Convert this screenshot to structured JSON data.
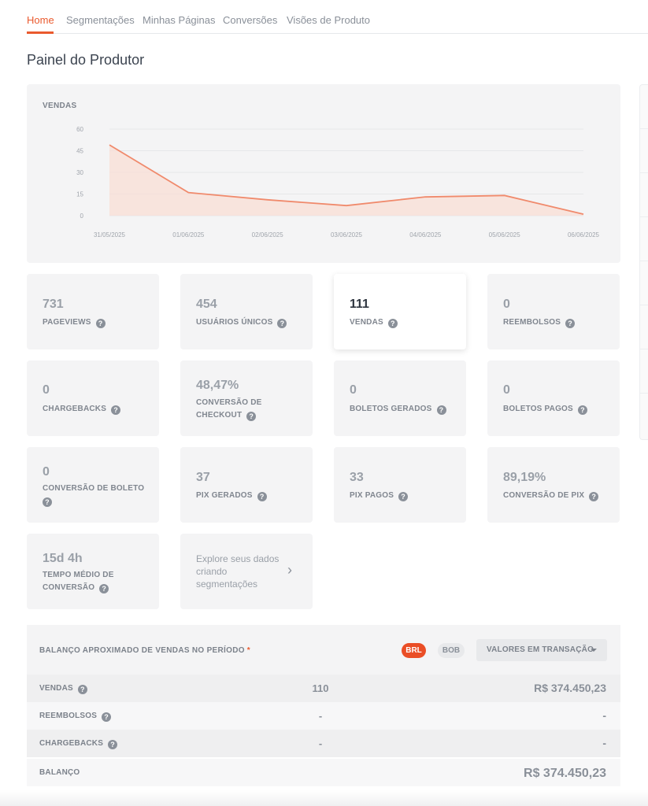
{
  "nav": {
    "tabs": [
      {
        "label": "Home",
        "active": true
      },
      {
        "label": "Segmentações"
      },
      {
        "label": "Minhas Páginas"
      },
      {
        "label": "Conversões"
      },
      {
        "label": "Visões de Produto"
      }
    ]
  },
  "page": {
    "title": "Painel do Produtor"
  },
  "chart": {
    "title": "VENDAS"
  },
  "chart_data": {
    "type": "area",
    "title": "VENDAS",
    "categories": [
      "31/05/2025",
      "01/06/2025",
      "02/06/2025",
      "03/06/2025",
      "04/06/2025",
      "05/06/2025",
      "06/06/2025"
    ],
    "series": [
      {
        "values": [
          49,
          16,
          11,
          7,
          13,
          14,
          1
        ]
      }
    ],
    "yticks": [
      "0",
      "15",
      "30",
      "45",
      "60"
    ],
    "ylim": [
      0,
      60
    ],
    "grid": true,
    "color": "#f08a6c"
  },
  "stats": {
    "pageviews": {
      "value": "731",
      "label": "PAGEVIEWS"
    },
    "usuarios": {
      "value": "454",
      "label": "USUÁRIOS ÚNICOS"
    },
    "vendas": {
      "value": "111",
      "label": "VENDAS"
    },
    "reembolsos": {
      "value": "0",
      "label": "REEMBOLSOS"
    },
    "chargebacks": {
      "value": "0",
      "label": "CHARGEBACKS"
    },
    "conv_checkout": {
      "value": "48,47%",
      "label1": "CONVERSÃO DE",
      "label2": "CHECKOUT"
    },
    "boletos_gerados": {
      "value": "0",
      "label": "BOLETOS GERADOS"
    },
    "boletos_pagos": {
      "value": "0",
      "label": "BOLETOS PAGOS"
    },
    "conv_boleto": {
      "value": "0",
      "label": "CONVERSÃO DE BOLETO"
    },
    "pix_gerados": {
      "value": "37",
      "label": "PIX GERADOS"
    },
    "pix_pagos": {
      "value": "33",
      "label": "PIX PAGOS"
    },
    "conv_pix": {
      "value": "89,19%",
      "label": "CONVERSÃO DE PIX"
    },
    "tempo": {
      "value": "15d 4h",
      "label1": "TEMPO MÉDIO DE",
      "label2": "CONVERSÃO"
    }
  },
  "explore": {
    "text": "Explore seus dados criando segmentações"
  },
  "help_glyph": "?",
  "chevron_glyph": "›",
  "balance": {
    "title": "BALANÇO APROXIMADO DE VENDAS NO PERÍODO",
    "star": "*",
    "currency_brl": "BRL",
    "currency_bob": "BOB",
    "dropdown_label": "VALORES EM TRANSAÇÃO",
    "rows": [
      {
        "label": "VENDAS",
        "count": "110",
        "amount": "R$ 374.450,23"
      },
      {
        "label": "REEMBOLSOS",
        "count": "-",
        "amount": "-"
      },
      {
        "label": "CHARGEBACKS",
        "count": "-",
        "amount": "-"
      },
      {
        "label": "BALANÇO",
        "amount": "R$ 374.450,23"
      }
    ]
  }
}
